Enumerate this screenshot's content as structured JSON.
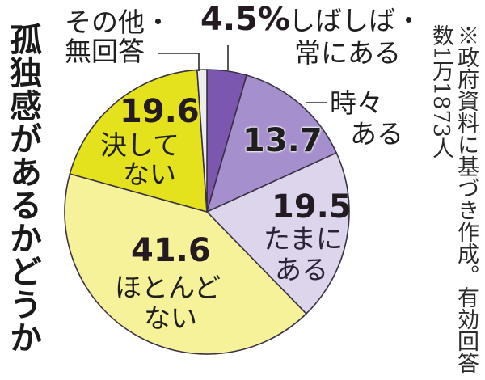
{
  "chart_data": {
    "type": "pie",
    "title": "孤独感があるかどうか",
    "note": "※政府資料に基づき作成。有効回答数1万1873人",
    "unit": "%",
    "start_angle_deg": 0,
    "direction": "clockwise",
    "categories": [
      "しばしば・常にある",
      "時々ある",
      "たまにある",
      "ほとんどない",
      "決してない",
      "その他・無回答"
    ],
    "values": [
      4.5,
      13.7,
      19.5,
      41.6,
      19.6,
      1.1
    ],
    "colors": [
      "#7b57b0",
      "#a58fcd",
      "#ddd5ec",
      "#f6f29a",
      "#e3e21c",
      "#ececec"
    ],
    "legend": "none (direct labels)"
  },
  "title": {
    "text": "孤独感があるかどうか"
  },
  "note": {
    "text": "※政府資料に基づき作成。有効回答数1万1873人"
  },
  "labels": {
    "often": {
      "value": "4.5%",
      "line1": "しばしば・",
      "line2": "常にある"
    },
    "sometimes": {
      "value": "13.7",
      "line1": "時々",
      "line2": "ある"
    },
    "occasionally": {
      "value": "19.5",
      "line1": "たまに",
      "line2": "ある"
    },
    "hardly": {
      "value": "41.6",
      "line1": "ほとんど",
      "line2": "ない"
    },
    "never": {
      "value": "19.6",
      "line1": "決して",
      "line2": "ない"
    },
    "other": {
      "line1": "その他・",
      "line2": "無回答"
    }
  }
}
